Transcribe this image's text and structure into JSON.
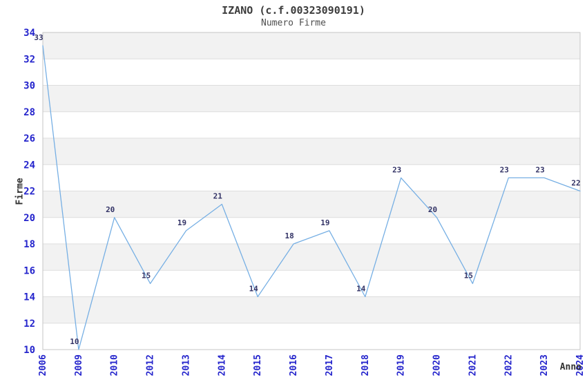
{
  "chart_data": {
    "type": "line",
    "title": "IZANO (c.f.00323090191)",
    "subtitle": "Numero Firme",
    "xlabel": "Anno",
    "ylabel": "Firme",
    "categories": [
      "2006",
      "2009",
      "2010",
      "2012",
      "2013",
      "2014",
      "2015",
      "2016",
      "2017",
      "2018",
      "2019",
      "2020",
      "2021",
      "2022",
      "2023",
      "2024"
    ],
    "values": [
      33,
      10,
      20,
      15,
      19,
      21,
      14,
      18,
      19,
      14,
      23,
      20,
      15,
      23,
      23,
      22
    ],
    "ylim": [
      10,
      34
    ],
    "ytick_step": 2,
    "yticks": [
      10,
      12,
      14,
      16,
      18,
      20,
      22,
      24,
      26,
      28,
      30,
      32,
      34
    ],
    "grid": "horizontal-with-alternating-bands",
    "legend": "none",
    "point_labels": true,
    "x_tick_rotation_deg": -90,
    "colors": {
      "line": "#76AFE4",
      "tick_labels": "#2424CC",
      "point_labels": "#333366",
      "title": "#3C3C3C",
      "subtitle": "#4E4E4E",
      "axis_titles": "#303030",
      "band": "#F2F2F2",
      "grid": "#DDDDDD",
      "border": "#C6C6C6",
      "background": "#FFFFFF"
    }
  }
}
